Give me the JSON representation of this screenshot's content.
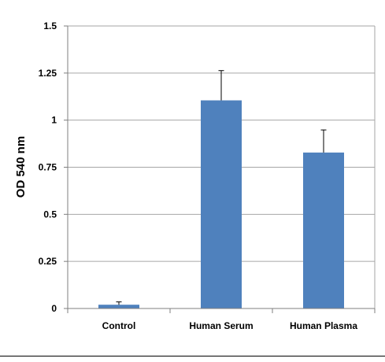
{
  "chart_data": {
    "type": "bar",
    "title": "",
    "xlabel": "",
    "ylabel": "OD 540 nm",
    "categories": [
      "Control",
      "Human Serum",
      "Human Plasma"
    ],
    "values": [
      0.02,
      1.105,
      0.828
    ],
    "error_upper": [
      0.035,
      1.263,
      0.948
    ],
    "ylim": [
      0,
      1.5
    ],
    "yticks": [
      0,
      0.25,
      0.5,
      0.75,
      1,
      1.25,
      1.5
    ],
    "ytick_labels": [
      "0",
      "0.25",
      "0.5",
      "0.75",
      "1",
      "1.25",
      "1.5"
    ],
    "grid": true,
    "legend": "none",
    "colors": {
      "bar": "#4F81BD",
      "grid": "#A6A6A6",
      "axis": "#7F7F7F",
      "error": "#000000",
      "plot_border": "#A6A6A6"
    }
  }
}
